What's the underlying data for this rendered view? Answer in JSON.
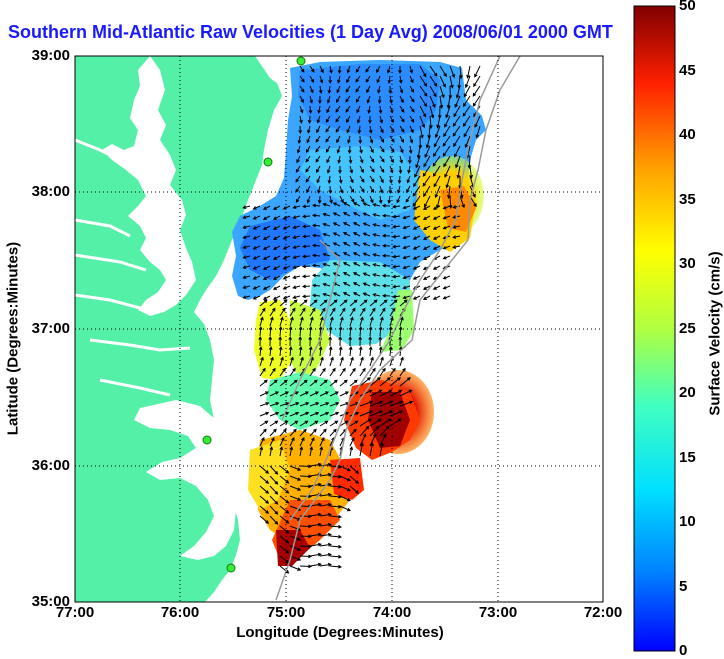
{
  "title": "Southern Mid-Atlantic Raw Velocities (1 Day Avg) 2008/06/01 2000 GMT",
  "xlabel": "Longitude (Degrees:Minutes)",
  "ylabel": "Latitude (Degrees:Minutes)",
  "colorbar_label": "Surface Velocity (cm/s)",
  "x_ticks": [
    "77:00",
    "76:00",
    "75:00",
    "74:00",
    "73:00",
    "72:00"
  ],
  "y_ticks": [
    "39:00",
    "38:00",
    "37:00",
    "36:00",
    "35:00"
  ],
  "colorbar_ticks": [
    "50",
    "45",
    "40",
    "35",
    "30",
    "25",
    "20",
    "15",
    "10",
    "5",
    "0"
  ],
  "colors": {
    "land": "#55f0a8",
    "title": "#1a1aff",
    "grid": "#000000"
  },
  "axes": {
    "lon_range": [
      -77,
      -72
    ],
    "lat_range": [
      35,
      39
    ],
    "velocity_range": [
      0,
      50
    ],
    "grid": true
  }
}
